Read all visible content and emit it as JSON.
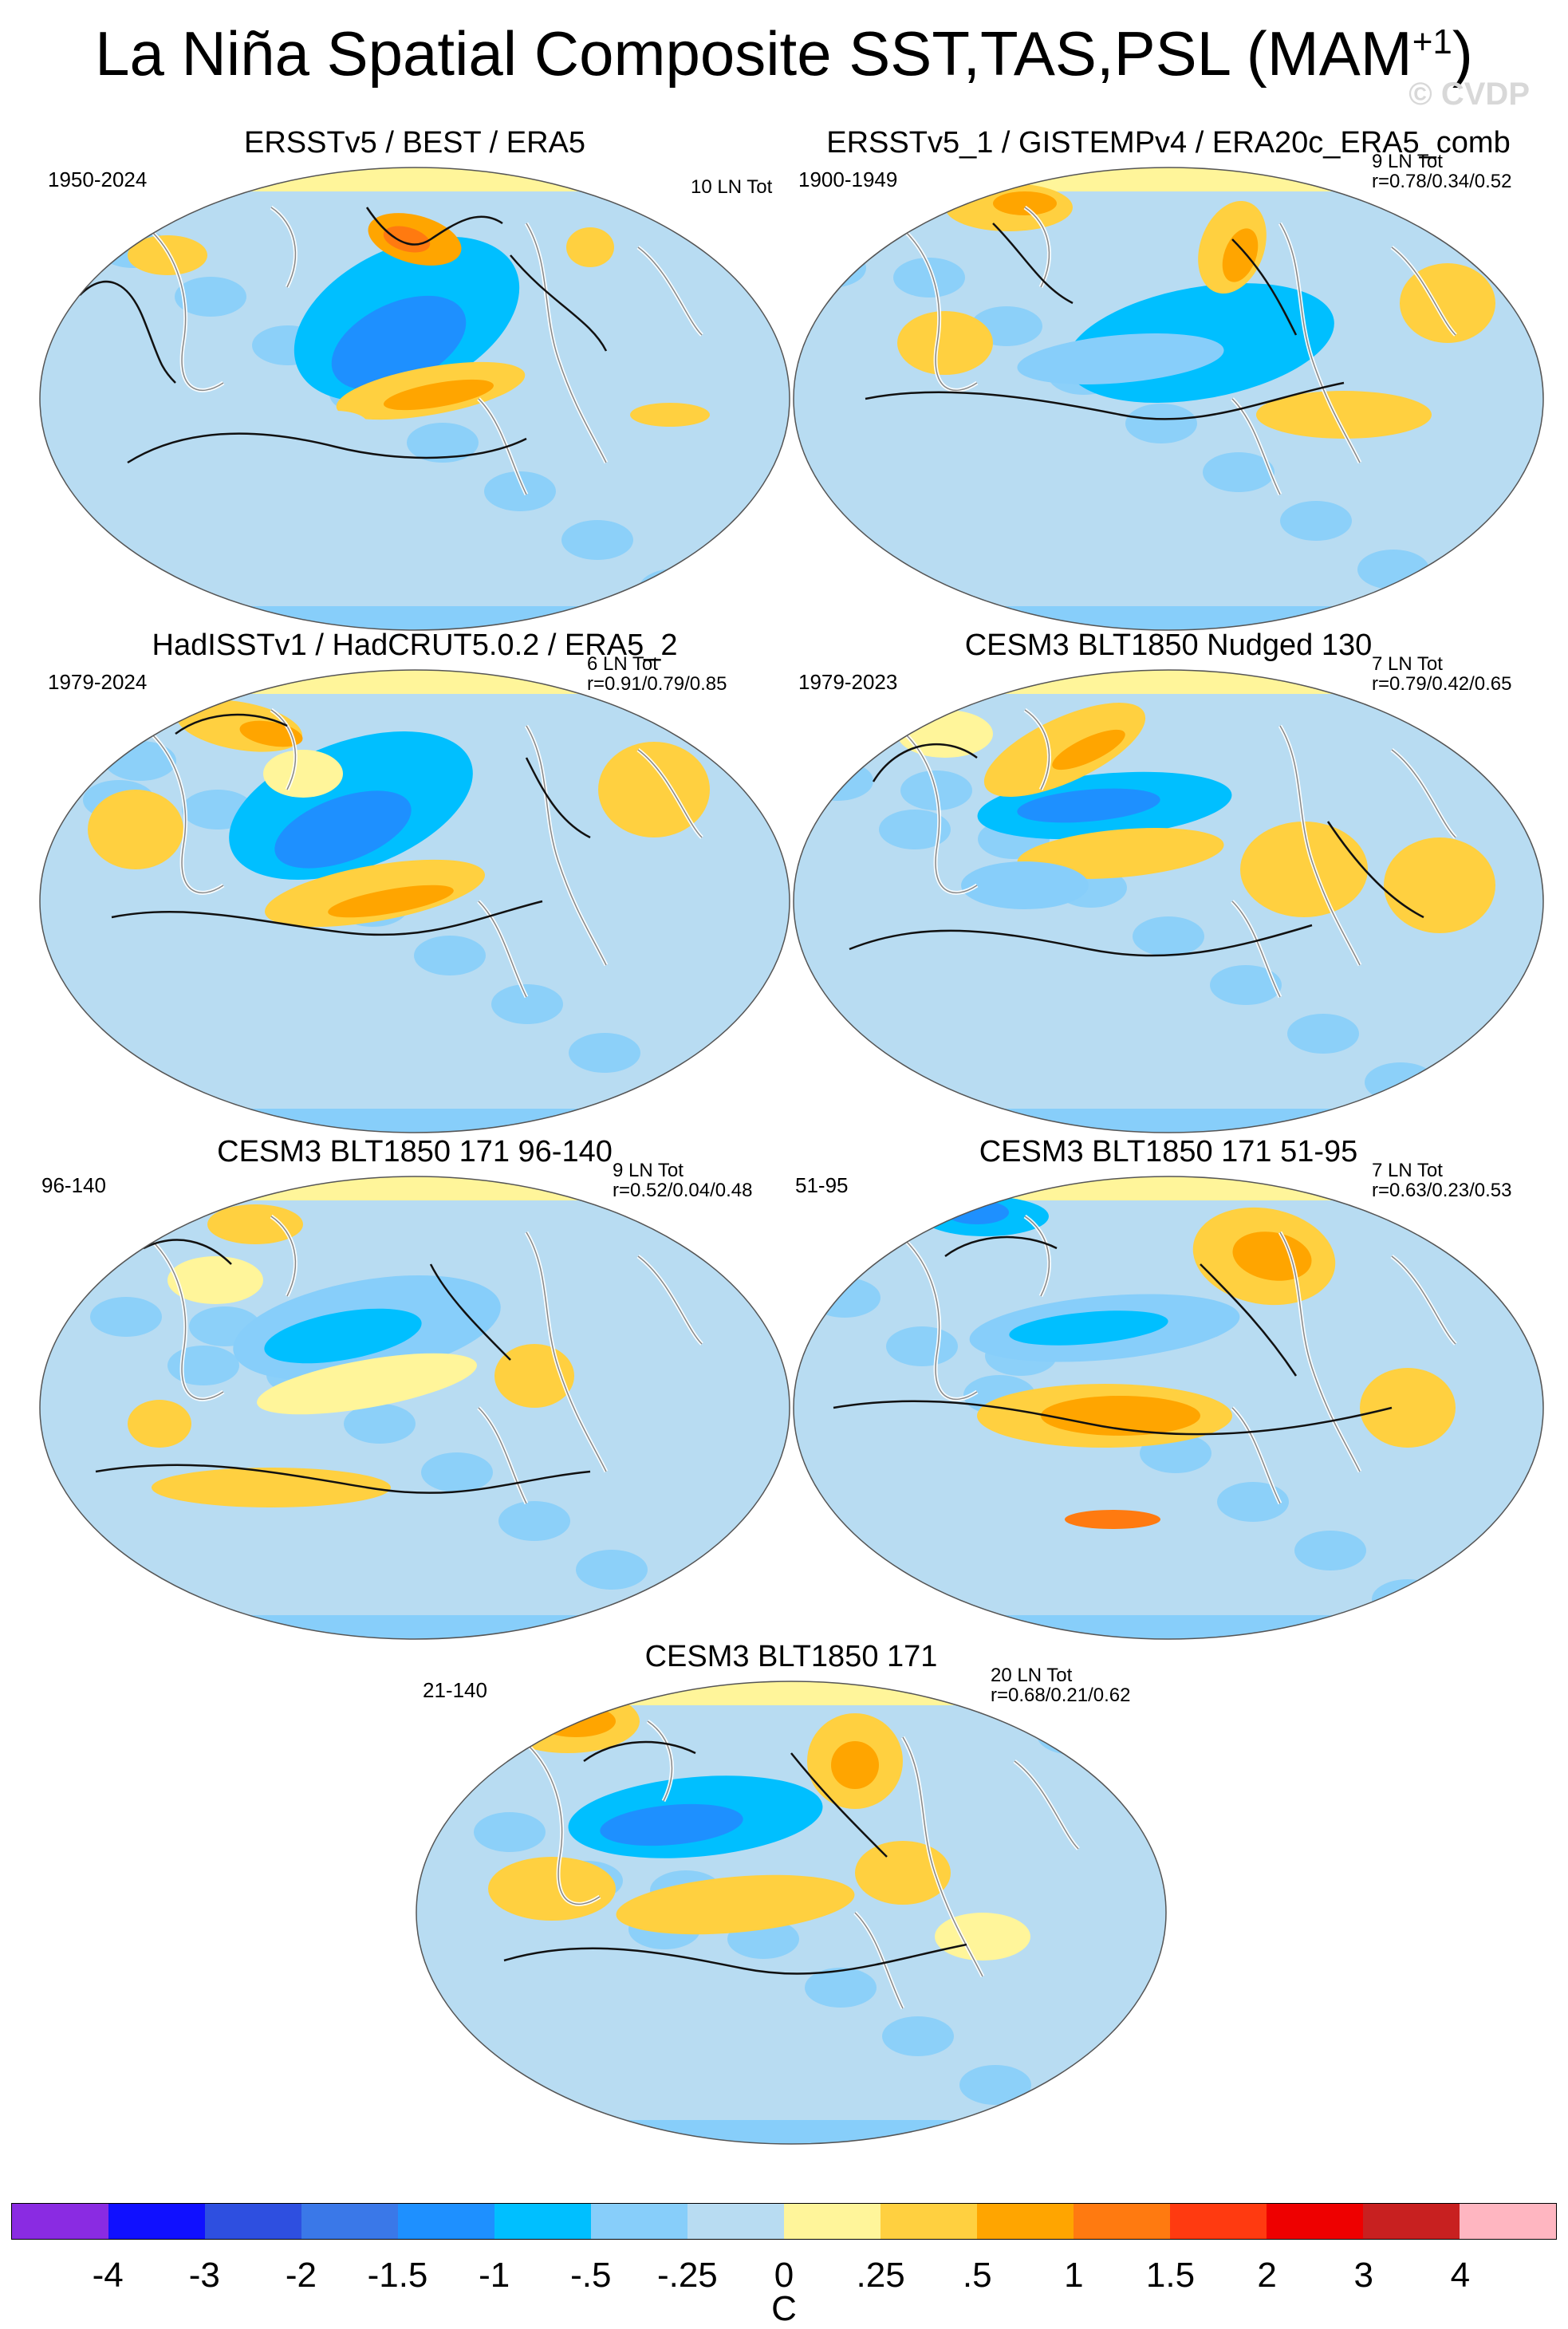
{
  "title": "La Niña Spatial Composite SST,TAS,PSL (MAM",
  "title_sup": "+1",
  "title_close": ")",
  "watermark": "© CVDP",
  "panels": [
    {
      "title": "ERSSTv5 / BEST / ERA5",
      "period": "1950-2024",
      "count": "10 LN Tot",
      "corr": ""
    },
    {
      "title": "ERSSTv5_1 / GISTEMPv4 / ERA20c_ERA5_comb",
      "period": "1900-1949",
      "count": "9 LN Tot",
      "corr": "r=0.78/0.34/0.52"
    },
    {
      "title": "HadISSTv1 / HadCRUT5.0.2 / ERA5_2",
      "period": "1979-2024",
      "count": "6 LN Tot",
      "corr": "r=0.91/0.79/0.85"
    },
    {
      "title": "CESM3 BLT1850 Nudged 130",
      "period": "1979-2023",
      "count": "7 LN Tot",
      "corr": "r=0.79/0.42/0.65"
    },
    {
      "title": "CESM3 BLT1850 171 96-140",
      "period": "96-140",
      "count": "9 LN Tot",
      "corr": "r=0.52/0.04/0.48"
    },
    {
      "title": "CESM3 BLT1850 171 51-95",
      "period": "51-95",
      "count": "7 LN Tot",
      "corr": "r=0.63/0.23/0.53"
    },
    {
      "title": "CESM3 BLT1850 171",
      "period": "21-140",
      "count": "20 LN Tot",
      "corr": "r=0.68/0.21/0.62"
    }
  ],
  "colorbar": {
    "colors": [
      "#8a2be2",
      "#1010ff",
      "#2e4fe0",
      "#3a78e8",
      "#1e90ff",
      "#00bfff",
      "#87cefa",
      "#b8dcf2",
      "#fff59a",
      "#ffd040",
      "#ffa500",
      "#ff7a10",
      "#ff3a10",
      "#ee0000",
      "#c82020",
      "#ffb6c1"
    ],
    "ticks": [
      "-4",
      "-3",
      "-2",
      "-1.5",
      "-1",
      "-.5",
      "-.25",
      "0",
      ".25",
      ".5",
      "1",
      "1.5",
      "2",
      "3",
      "4"
    ],
    "units": "C"
  }
}
